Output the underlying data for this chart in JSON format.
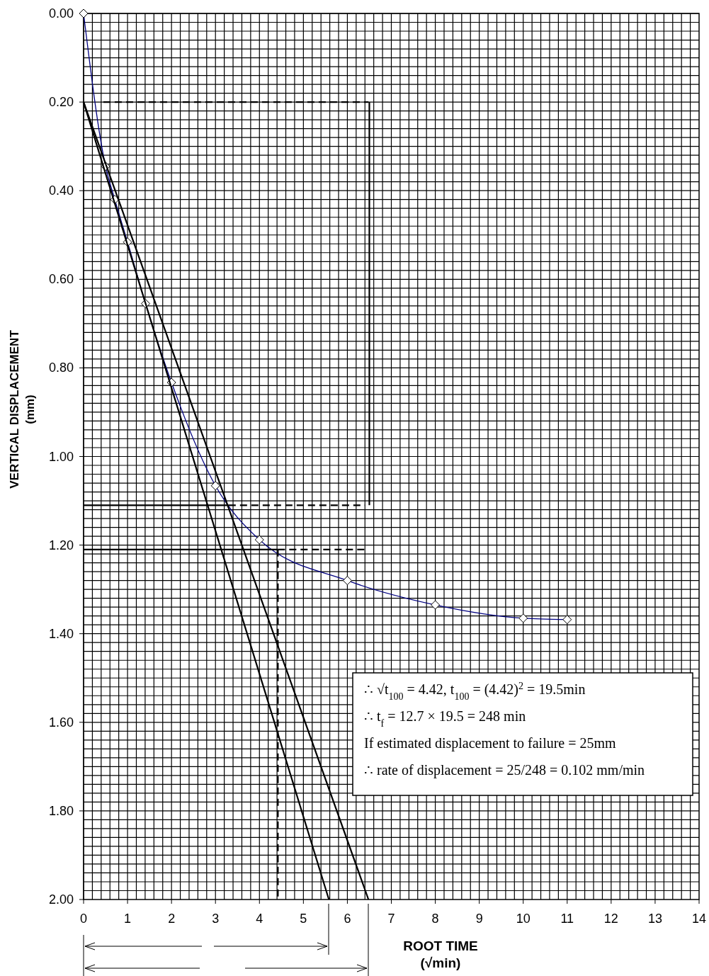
{
  "chart_data": {
    "type": "line",
    "xlabel": "ROOT TIME\n(√min)",
    "ylabel": "VERTICAL  DISPLACEMENT\n(mm)",
    "xlim": [
      0,
      14
    ],
    "xticks": [
      0,
      1,
      2,
      3,
      4,
      5,
      6,
      7,
      8,
      9,
      10,
      11,
      12,
      13,
      14
    ],
    "ylim": [
      2.0,
      0.0
    ],
    "yticks": [
      {
        "value": 0,
        "label": "0.00"
      },
      {
        "value": 0.2,
        "label": "0.20"
      },
      {
        "value": 0.4,
        "label": "0.40"
      },
      {
        "value": 0.6,
        "label": "0.60"
      },
      {
        "value": 0.8,
        "label": "0.80"
      },
      {
        "value": 1.0,
        "label": "1.00"
      },
      {
        "value": 1.2,
        "label": "1.20"
      },
      {
        "value": 1.4,
        "label": "1.40"
      },
      {
        "value": 1.6,
        "label": "1.60"
      },
      {
        "value": 1.8,
        "label": "1.80"
      },
      {
        "value": 2.0,
        "label": "2.00"
      }
    ],
    "grid": true,
    "series": [
      {
        "color": "#000080",
        "marker": "diamond",
        "line_style": "solid",
        "x": [
          0,
          0.5,
          0.71,
          1.0,
          1.41,
          2.0,
          3.0,
          4.0,
          6.0,
          8.0,
          10.0,
          11.0
        ],
        "values": [
          0,
          0.345,
          0.42,
          0.516,
          0.655,
          0.833,
          1.066,
          1.188,
          1.28,
          1.335,
          1.365,
          1.368
        ]
      },
      {
        "color": "#000000",
        "marker": "none",
        "line_style": "solid",
        "x": [
          0,
          5.58
        ],
        "values": [
          0.2,
          2.0
        ]
      },
      {
        "color": "#000000",
        "marker": "none",
        "line_style": "solid",
        "x": [
          0,
          6.48
        ],
        "values": [
          0.2,
          2.0
        ]
      },
      {
        "color": "#000000",
        "marker": "none",
        "line_style": "dashed",
        "x": [
          0.45,
          6.48
        ],
        "values": [
          0.2,
          0.2
        ]
      },
      {
        "color": "#000000",
        "marker": "none",
        "line_style": "solid",
        "x": [
          6.5,
          6.5
        ],
        "values": [
          0.2,
          1.11
        ]
      },
      {
        "color": "#000000",
        "marker": "none",
        "line_style": "solid",
        "x": [
          0,
          3.3
        ],
        "values": [
          1.11,
          1.11
        ]
      },
      {
        "color": "#000000",
        "marker": "none",
        "line_style": "dashed",
        "x": [
          3.3,
          6.4
        ],
        "values": [
          1.11,
          1.11
        ]
      },
      {
        "color": "#000000",
        "marker": "none",
        "line_style": "solid",
        "x": [
          0,
          4.42
        ],
        "values": [
          1.21,
          1.21
        ]
      },
      {
        "color": "#000000",
        "marker": "none",
        "line_style": "dashed",
        "x": [
          4.42,
          6.4
        ],
        "values": [
          1.21,
          1.21
        ]
      },
      {
        "color": "#000000",
        "marker": "none",
        "line_style": "dashed",
        "x": [
          4.42,
          4.42
        ],
        "values": [
          1.21,
          2.0
        ]
      }
    ],
    "annotations": [
      "∴ √t$_{100}$ = 4.42,  t$_{100}$ = (4.42)$^{2}$ = 19.5min",
      "∴ t$_{f}$ = 12.7 × 19.5 = 248 min",
      "If estimated displacement to failure = 25mm",
      "∴ rate of displacement = 25/248 = 0.102 mm/min"
    ]
  }
}
